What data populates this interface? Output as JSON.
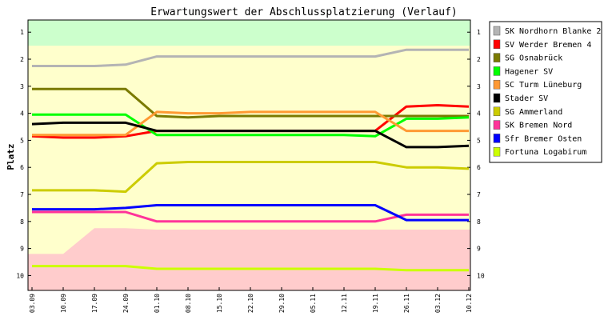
{
  "chart_data": {
    "type": "line",
    "title": "Erwartungswert der Abschlussplatzierung (Verlauf)",
    "ylabel": "Platz",
    "xlabel": "",
    "categories": [
      "03.09",
      "10.09",
      "17.09",
      "24.09",
      "01.10",
      "08.10",
      "15.10",
      "22.10",
      "29.10",
      "05.11",
      "12.11",
      "19.11",
      "26.11",
      "03.12",
      "10.12"
    ],
    "y_ticks": [
      1,
      2,
      3,
      4,
      5,
      6,
      7,
      8,
      9,
      10
    ],
    "ylim": [
      0.55,
      10.55
    ],
    "y_inverted": true,
    "grid": false,
    "legend_position": "right",
    "zones": [
      {
        "name": "promotion",
        "color": "#ccffcc",
        "upper": [
          1.5,
          1.5,
          1.5,
          1.5,
          1.5,
          1.5,
          1.5,
          1.5,
          1.5,
          1.5,
          1.5,
          1.5,
          1.5,
          1.5,
          1.5
        ]
      },
      {
        "name": "neutral",
        "color": "#ffffcc"
      },
      {
        "name": "relegation",
        "color": "#ffcccc",
        "upper": [
          9.2,
          9.2,
          8.25,
          8.25,
          8.3,
          8.3,
          8.3,
          8.3,
          8.3,
          8.3,
          8.3,
          8.3,
          8.3,
          8.3,
          8.3
        ]
      }
    ],
    "series": [
      {
        "name": "SK Nordhorn Blanke 2",
        "color": "#b4b4b4",
        "values": [
          2.25,
          2.25,
          2.25,
          2.2,
          1.9,
          1.9,
          1.9,
          1.9,
          1.9,
          1.9,
          1.9,
          1.9,
          1.65,
          1.65,
          1.65
        ]
      },
      {
        "name": "SV Werder Bremen 4",
        "color": "#ff0000",
        "values": [
          4.85,
          4.9,
          4.9,
          4.85,
          4.65,
          4.65,
          4.65,
          4.65,
          4.65,
          4.65,
          4.65,
          4.65,
          3.75,
          3.7,
          3.75
        ]
      },
      {
        "name": "SG Osnabrück",
        "color": "#7a7a00",
        "values": [
          3.1,
          3.1,
          3.1,
          3.1,
          4.1,
          4.15,
          4.1,
          4.1,
          4.1,
          4.1,
          4.1,
          4.1,
          4.1,
          4.1,
          4.1
        ]
      },
      {
        "name": "Hagener SV",
        "color": "#00ff00",
        "values": [
          4.05,
          4.05,
          4.05,
          4.05,
          4.8,
          4.8,
          4.8,
          4.8,
          4.8,
          4.8,
          4.8,
          4.85,
          4.2,
          4.2,
          4.15
        ]
      },
      {
        "name": "SC Turm Lüneburg",
        "color": "#ff9933",
        "values": [
          4.8,
          4.8,
          4.8,
          4.8,
          3.95,
          4.0,
          4.0,
          3.95,
          3.95,
          3.95,
          3.95,
          3.95,
          4.65,
          4.65,
          4.65
        ]
      },
      {
        "name": "Stader SV",
        "color": "#000000",
        "values": [
          4.4,
          4.35,
          4.35,
          4.35,
          4.65,
          4.65,
          4.65,
          4.65,
          4.65,
          4.65,
          4.65,
          4.65,
          5.25,
          5.25,
          5.2
        ]
      },
      {
        "name": "SG Ammerland",
        "color": "#cccc00",
        "values": [
          6.85,
          6.85,
          6.85,
          6.9,
          5.85,
          5.8,
          5.8,
          5.8,
          5.8,
          5.8,
          5.8,
          5.8,
          6.0,
          6.0,
          6.05
        ]
      },
      {
        "name": "SK Bremen Nord",
        "color": "#ff3399",
        "values": [
          7.65,
          7.65,
          7.65,
          7.65,
          8.0,
          8.0,
          8.0,
          8.0,
          8.0,
          8.0,
          8.0,
          8.0,
          7.75,
          7.75,
          7.75
        ]
      },
      {
        "name": "Sfr Bremer Osten",
        "color": "#0000ff",
        "values": [
          7.55,
          7.55,
          7.55,
          7.5,
          7.4,
          7.4,
          7.4,
          7.4,
          7.4,
          7.4,
          7.4,
          7.4,
          7.95,
          7.95,
          7.95
        ]
      },
      {
        "name": "Fortuna Logabirum",
        "color": "#ccff00",
        "values": [
          9.65,
          9.65,
          9.65,
          9.65,
          9.75,
          9.75,
          9.75,
          9.75,
          9.75,
          9.75,
          9.75,
          9.75,
          9.8,
          9.8,
          9.8
        ]
      }
    ]
  }
}
